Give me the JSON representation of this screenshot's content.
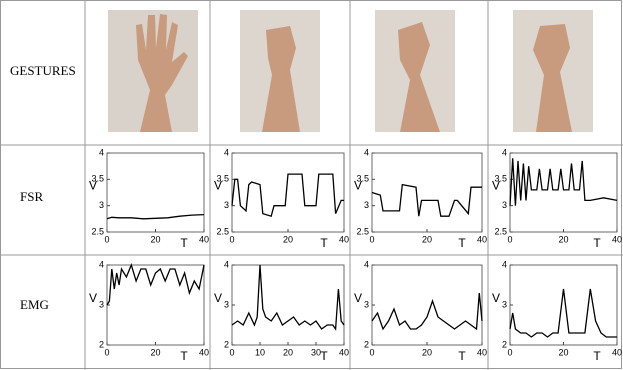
{
  "table": {
    "row_headers": [
      "GESTURES",
      "FSR",
      "EMG"
    ]
  },
  "chart_data": [
    {
      "type": "line",
      "xlabel": "T",
      "ylabel": "V",
      "xlim": [
        0,
        40
      ],
      "ylim": [
        2.5,
        4
      ],
      "xticks": [
        0,
        20,
        40
      ],
      "yticks": [
        2.5,
        3,
        3.5,
        4
      ],
      "color": "#000000",
      "x": [
        0,
        2,
        5,
        10,
        15,
        20,
        25,
        30,
        35,
        40
      ],
      "values": [
        2.75,
        2.78,
        2.77,
        2.77,
        2.75,
        2.76,
        2.77,
        2.8,
        2.82,
        2.83
      ]
    },
    {
      "type": "line",
      "xlabel": "T",
      "ylabel": "V",
      "xlim": [
        0,
        40
      ],
      "ylim": [
        2.5,
        4
      ],
      "xticks": [
        0,
        20,
        40
      ],
      "yticks": [
        2.5,
        3,
        3.5,
        4
      ],
      "color": "#000000",
      "x": [
        0,
        1,
        2,
        3,
        5,
        6,
        7,
        10,
        11,
        14,
        15,
        19,
        20,
        25,
        26,
        30,
        31,
        36,
        37,
        39,
        40
      ],
      "values": [
        3.0,
        3.5,
        3.5,
        3.0,
        2.9,
        3.4,
        3.45,
        3.4,
        2.85,
        2.8,
        3.0,
        3.0,
        3.6,
        3.6,
        3.0,
        3.0,
        3.6,
        3.6,
        2.85,
        3.1,
        3.1
      ]
    },
    {
      "type": "line",
      "xlabel": "T",
      "ylabel": "V",
      "xlim": [
        0,
        40
      ],
      "ylim": [
        2.5,
        4
      ],
      "xticks": [
        0,
        20,
        40
      ],
      "yticks": [
        2.5,
        3,
        3.5,
        4
      ],
      "color": "#000000",
      "x": [
        0,
        3,
        4,
        10,
        11,
        16,
        17,
        18,
        24,
        25,
        28,
        30,
        31,
        35,
        36,
        40
      ],
      "values": [
        3.25,
        3.2,
        2.9,
        2.9,
        3.4,
        3.35,
        2.8,
        3.1,
        3.1,
        2.8,
        2.8,
        3.1,
        3.1,
        2.85,
        3.35,
        3.35
      ]
    },
    {
      "type": "line",
      "xlabel": "T",
      "ylabel": "V",
      "xlim": [
        0,
        40
      ],
      "ylim": [
        2.5,
        4
      ],
      "xticks": [
        0,
        20,
        40
      ],
      "yticks": [
        2.5,
        3,
        3.5,
        4
      ],
      "color": "#000000",
      "x": [
        0,
        1,
        2,
        3,
        4,
        5,
        6,
        7,
        8,
        10,
        11,
        12,
        14,
        15,
        16,
        18,
        19,
        20,
        22,
        23,
        24,
        26,
        27,
        28,
        30,
        35,
        40
      ],
      "values": [
        3.0,
        3.9,
        3.0,
        3.85,
        3.1,
        3.8,
        3.1,
        3.75,
        3.3,
        3.3,
        3.7,
        3.3,
        3.3,
        3.7,
        3.3,
        3.3,
        3.7,
        3.3,
        3.3,
        3.8,
        3.3,
        3.3,
        3.85,
        3.1,
        3.1,
        3.15,
        3.1
      ]
    },
    {
      "type": "line",
      "xlabel": "T",
      "ylabel": "V",
      "xlim": [
        0,
        40
      ],
      "ylim": [
        2,
        4
      ],
      "xticks": [
        0,
        20,
        40
      ],
      "yticks": [
        2,
        3,
        4
      ],
      "color": "#000000",
      "x": [
        0,
        1,
        2,
        3,
        4,
        5,
        6,
        8,
        10,
        12,
        14,
        16,
        18,
        20,
        22,
        24,
        26,
        28,
        30,
        32,
        34,
        36,
        38,
        40
      ],
      "values": [
        3.0,
        3.1,
        3.9,
        3.4,
        3.8,
        3.5,
        3.9,
        3.7,
        4.0,
        3.6,
        3.9,
        3.9,
        3.5,
        3.8,
        3.9,
        3.6,
        3.9,
        3.9,
        3.5,
        3.8,
        3.3,
        3.6,
        3.4,
        4.0
      ]
    },
    {
      "type": "line",
      "xlabel": "T",
      "ylabel": "V",
      "xlim": [
        0,
        40
      ],
      "ylim": [
        2,
        4
      ],
      "xticks": [
        0,
        10,
        20,
        30,
        40
      ],
      "yticks": [
        2,
        3,
        4
      ],
      "color": "#000000",
      "x": [
        0,
        2,
        4,
        6,
        8,
        9,
        10,
        11,
        12,
        14,
        16,
        18,
        20,
        22,
        24,
        26,
        28,
        30,
        32,
        34,
        36,
        37,
        38,
        39,
        40
      ],
      "values": [
        2.5,
        2.6,
        2.5,
        2.8,
        2.5,
        2.7,
        4.0,
        2.9,
        2.7,
        2.6,
        2.8,
        2.5,
        2.6,
        2.7,
        2.5,
        2.6,
        2.5,
        2.6,
        2.4,
        2.5,
        2.5,
        2.4,
        3.4,
        2.6,
        2.5
      ]
    },
    {
      "type": "line",
      "xlabel": "T",
      "ylabel": "V",
      "xlim": [
        0,
        40
      ],
      "ylim": [
        2,
        4
      ],
      "xticks": [
        0,
        20,
        40
      ],
      "yticks": [
        2,
        3,
        4
      ],
      "color": "#000000",
      "x": [
        0,
        2,
        4,
        6,
        8,
        10,
        12,
        14,
        16,
        18,
        20,
        22,
        24,
        26,
        28,
        30,
        32,
        34,
        36,
        38,
        39,
        40
      ],
      "values": [
        2.6,
        2.8,
        2.4,
        2.6,
        2.9,
        2.5,
        2.6,
        2.4,
        2.4,
        2.5,
        2.7,
        3.1,
        2.7,
        2.6,
        2.5,
        2.4,
        2.5,
        2.6,
        2.5,
        2.4,
        3.3,
        2.6
      ]
    },
    {
      "type": "line",
      "xlabel": "T",
      "ylabel": "V",
      "xlim": [
        0,
        40
      ],
      "ylim": [
        2,
        4
      ],
      "xticks": [
        0,
        20,
        40
      ],
      "yticks": [
        2,
        3,
        4
      ],
      "color": "#000000",
      "x": [
        0,
        1,
        2,
        4,
        6,
        8,
        10,
        12,
        14,
        16,
        18,
        20,
        22,
        24,
        26,
        28,
        30,
        32,
        34,
        36,
        38,
        40
      ],
      "values": [
        2.4,
        2.8,
        2.4,
        2.3,
        2.3,
        2.2,
        2.3,
        2.3,
        2.2,
        2.3,
        2.3,
        3.4,
        2.3,
        2.3,
        2.3,
        2.3,
        3.4,
        2.6,
        2.3,
        2.2,
        2.2,
        2.2
      ]
    }
  ]
}
